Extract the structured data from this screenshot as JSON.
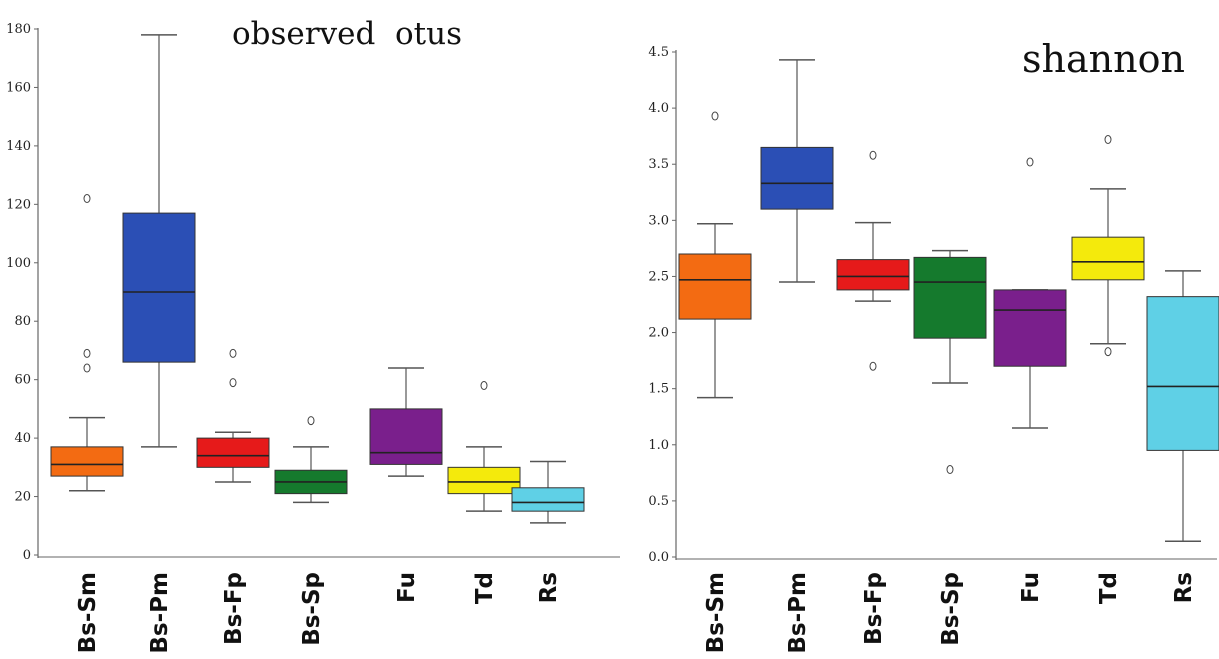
{
  "chart_data": [
    {
      "type": "box",
      "title": "observed  otus",
      "ylim": [
        0,
        180
      ],
      "yticks": [
        0,
        20,
        40,
        60,
        80,
        100,
        120,
        140,
        160,
        180
      ],
      "ytick_labels": [
        "0",
        "20",
        "40",
        "60",
        "80",
        "100",
        "120",
        "140",
        "160",
        "180"
      ],
      "grid": false,
      "categories": [
        "Bs-Sm",
        "Bs-Pm",
        "Bs-Fp",
        "Bs-Sp",
        "Fu",
        "Td",
        "Rs"
      ],
      "colors": [
        "#f36b12",
        "#2b4fb5",
        "#e61a1a",
        "#157a2d",
        "#7a1f8c",
        "#f4ea0c",
        "#5fd0e6"
      ],
      "boxes": [
        {
          "category": "Bs-Sm",
          "whisker_low": 22,
          "q1": 27,
          "median": 31,
          "q3": 37,
          "whisker_high": 47,
          "outliers": [
            64,
            69,
            122
          ]
        },
        {
          "category": "Bs-Pm",
          "whisker_low": 37,
          "q1": 66,
          "median": 90,
          "q3": 117,
          "whisker_high": 178,
          "outliers": []
        },
        {
          "category": "Bs-Fp",
          "whisker_low": 25,
          "q1": 30,
          "median": 34,
          "q3": 40,
          "whisker_high": 42,
          "outliers": [
            59,
            69
          ]
        },
        {
          "category": "Bs-Sp",
          "whisker_low": 18,
          "q1": 21,
          "median": 25,
          "q3": 29,
          "whisker_high": 37,
          "outliers": [
            46
          ]
        },
        {
          "category": "Fu",
          "whisker_low": 27,
          "q1": 31,
          "median": 35,
          "q3": 50,
          "whisker_high": 64,
          "outliers": []
        },
        {
          "category": "Td",
          "whisker_low": 15,
          "q1": 21,
          "median": 25,
          "q3": 30,
          "whisker_high": 37,
          "outliers": [
            58
          ]
        },
        {
          "category": "Rs",
          "whisker_low": 11,
          "q1": 15,
          "median": 18,
          "q3": 23,
          "whisker_high": 32,
          "outliers": []
        }
      ]
    },
    {
      "type": "box",
      "title": "shannon",
      "ylim": [
        0,
        4.5
      ],
      "yticks": [
        0,
        0.5,
        1.0,
        1.5,
        2.0,
        2.5,
        3.0,
        3.5,
        4.0,
        4.5
      ],
      "ytick_labels": [
        "0.0",
        "0.5",
        "1.0",
        "1.5",
        "2.0",
        "2.5",
        "3.0",
        "3.5",
        "4.0",
        "4.5"
      ],
      "grid": false,
      "categories": [
        "Bs-Sm",
        "Bs-Pm",
        "Bs-Fp",
        "Bs-Sp",
        "Fu",
        "Td",
        "Rs"
      ],
      "colors": [
        "#f36b12",
        "#2b4fb5",
        "#e61a1a",
        "#157a2d",
        "#7a1f8c",
        "#f4ea0c",
        "#5fd0e6"
      ],
      "boxes": [
        {
          "category": "Bs-Sm",
          "whisker_low": 1.42,
          "q1": 2.12,
          "median": 2.47,
          "q3": 2.7,
          "whisker_high": 2.97,
          "outliers": [
            3.93
          ]
        },
        {
          "category": "Bs-Pm",
          "whisker_low": 2.45,
          "q1": 3.1,
          "median": 3.33,
          "q3": 3.65,
          "whisker_high": 4.43,
          "outliers": []
        },
        {
          "category": "Bs-Fp",
          "whisker_low": 2.28,
          "q1": 2.38,
          "median": 2.5,
          "q3": 2.65,
          "whisker_high": 2.98,
          "outliers": [
            1.7,
            3.58
          ]
        },
        {
          "category": "Bs-Sp",
          "whisker_low": 1.55,
          "q1": 1.95,
          "median": 2.45,
          "q3": 2.67,
          "whisker_high": 2.73,
          "outliers": [
            0.78
          ]
        },
        {
          "category": "Fu",
          "whisker_low": 1.15,
          "q1": 1.7,
          "median": 2.2,
          "q3": 2.38,
          "whisker_high": 2.38,
          "outliers": [
            3.52
          ]
        },
        {
          "category": "Td",
          "whisker_low": 1.9,
          "q1": 2.47,
          "median": 2.63,
          "q3": 2.85,
          "whisker_high": 3.28,
          "outliers": [
            1.83,
            3.72
          ]
        },
        {
          "category": "Rs",
          "whisker_low": 0.14,
          "q1": 0.95,
          "median": 1.52,
          "q3": 2.32,
          "whisker_high": 2.55,
          "outliers": []
        }
      ]
    }
  ]
}
